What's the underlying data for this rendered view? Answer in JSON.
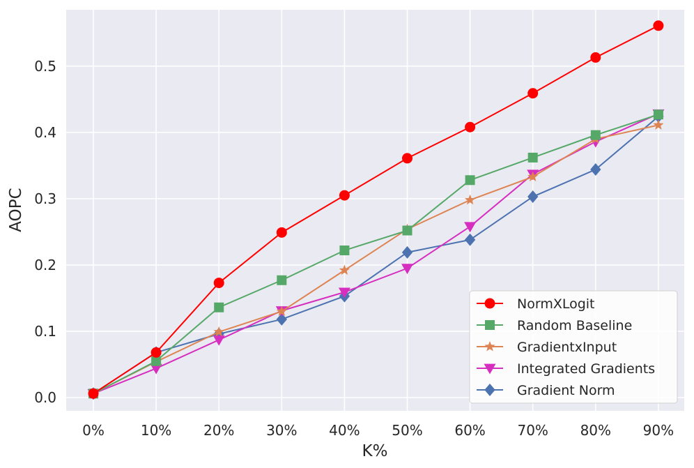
{
  "chart_data": {
    "type": "line",
    "title": "",
    "xlabel": "K%",
    "ylabel": "AOPC",
    "categories": [
      "0%",
      "10%",
      "20%",
      "30%",
      "40%",
      "50%",
      "60%",
      "70%",
      "80%",
      "90%"
    ],
    "ylim": [
      -0.02,
      0.585
    ],
    "yticks": [
      0.0,
      0.1,
      0.2,
      0.3,
      0.4,
      0.5
    ],
    "ytick_labels": [
      "0.0",
      "0.1",
      "0.2",
      "0.3",
      "0.4",
      "0.5"
    ],
    "grid": true,
    "legend_position": "bottom-right",
    "series": [
      {
        "name": "Gradient Norm",
        "color": "#4c72b0",
        "marker": "diamond",
        "values": [
          0.006,
          0.068,
          0.096,
          0.118,
          0.153,
          0.219,
          0.238,
          0.303,
          0.344,
          0.424
        ]
      },
      {
        "name": "Integrated Gradients",
        "color": "#d62fc0",
        "marker": "triangle-down",
        "values": [
          0.006,
          0.044,
          0.087,
          0.131,
          0.159,
          0.195,
          0.258,
          0.337,
          0.386,
          0.428
        ]
      },
      {
        "name": "GradientxInput",
        "color": "#dd8452",
        "marker": "star",
        "values": [
          0.006,
          0.054,
          0.099,
          0.13,
          0.192,
          0.254,
          0.298,
          0.333,
          0.39,
          0.411
        ]
      },
      {
        "name": "Random Baseline",
        "color": "#55a868",
        "marker": "square",
        "values": [
          0.006,
          0.055,
          0.136,
          0.177,
          0.222,
          0.252,
          0.328,
          0.362,
          0.396,
          0.427
        ]
      },
      {
        "name": "NormXLogit",
        "color": "#ff0000",
        "marker": "circle",
        "values": [
          0.006,
          0.068,
          0.173,
          0.249,
          0.305,
          0.361,
          0.408,
          0.459,
          0.513,
          0.561
        ]
      }
    ],
    "legend_order": [
      "NormXLogit",
      "Random Baseline",
      "GradientxInput",
      "Integrated Gradients",
      "Gradient Norm"
    ]
  }
}
